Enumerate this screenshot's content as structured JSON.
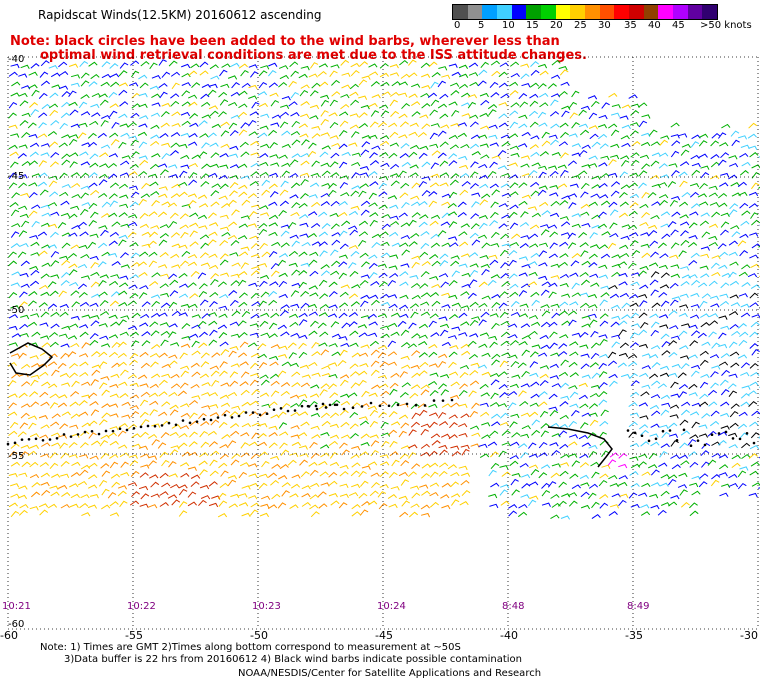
{
  "title": "Rapidscat Winds(12.5KM) 20160612 ascending",
  "note": {
    "line1": "Note: black circles have been added to the wind barbs, wherever less than",
    "line2": "optimal wind retrieval conditions are met due to the ISS attitude changes."
  },
  "colorbar": {
    "colors": [
      "#505050",
      "#909090",
      "#00a0ff",
      "#40d0ff",
      "#0000ff",
      "#00a000",
      "#00d000",
      "#ffff00",
      "#ffd000",
      "#ff9000",
      "#ff5000",
      "#ff0000",
      "#d00000",
      "#904000",
      "#ff00ff",
      "#b000ff",
      "#6000a0",
      "#300070"
    ],
    "labels": [
      "0",
      "5",
      "10",
      "15",
      "20",
      "25",
      "30",
      "35",
      "40",
      "45",
      ">50 knots"
    ]
  },
  "axes": {
    "x_ticks": [
      "-60",
      "-55",
      "-50",
      "-45",
      "-40",
      "-35",
      "-30"
    ],
    "lat_labels": [
      "-40",
      "-45",
      "-50",
      "-55",
      "-60"
    ]
  },
  "times": [
    "10:21",
    "10:22",
    "10:23",
    "10:24",
    "8:48",
    "8:49"
  ],
  "footer": {
    "line1": "Note: 1) Times are GMT 2)Times along bottom correspond to measurement at ~50S",
    "line2": "3)Data buffer is 22 hrs from 20160612 4) Black wind barbs indicate possible contamination",
    "line3": "NOAA/NESDIS/Center for Satellite Applications and Research"
  },
  "wind_colors": {
    "light": "#40d0ff",
    "blue": "#0000ff",
    "green": "#00b000",
    "yellow": "#ffd000",
    "orange": "#ff9000",
    "red": "#d03000",
    "magenta": "#ff00ff",
    "black": "#000000"
  }
}
